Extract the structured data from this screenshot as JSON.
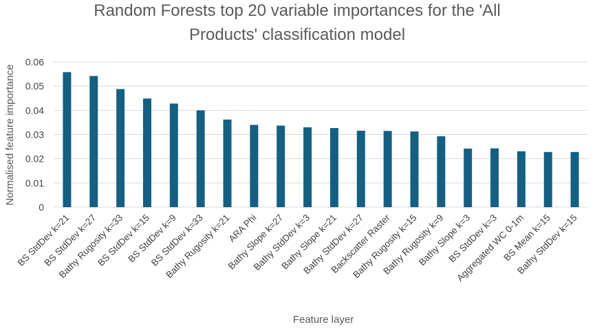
{
  "chart_data": {
    "type": "bar",
    "title_lines": [
      "Random Forests top 20 variable importances for the 'All",
      "Products' classification model"
    ],
    "xlabel": "Feature layer",
    "ylabel": "Normalised feature importance",
    "ylim": [
      0,
      0.06
    ],
    "yticks": [
      "0",
      "0.01",
      "0.02",
      "0.03",
      "0.04",
      "0.05",
      "0.06"
    ],
    "grid": true,
    "colors": {
      "bar": "#156082"
    },
    "categories": [
      "BS StdDev k=21",
      "BS StdDev k=27",
      "Bathy Rugosity k=33",
      "BS StdDev k=15",
      "BS StdDev k=9",
      "BS StdDev k=33",
      "Bathy Rugosity k=21",
      "ARA Phi",
      "Bathy Slope k=27",
      "Bathy StdDev k=3",
      "Bathy Slope k=21",
      "Bathy StdDev k=27",
      "Backscatter Raster",
      "Bathy Rugosity k=15",
      "Bathy Rugosity k=9",
      "Bathy Slope k=3",
      "BS StdDev k=3",
      "Aggregated WC 0-1m",
      "BS Mean k=15",
      "Bathy StdDev k=15"
    ],
    "values": [
      0.0558,
      0.0542,
      0.0488,
      0.0449,
      0.0428,
      0.04,
      0.0362,
      0.034,
      0.0337,
      0.033,
      0.0327,
      0.0316,
      0.0315,
      0.0313,
      0.0293,
      0.0242,
      0.0243,
      0.0231,
      0.0228,
      0.0228
    ]
  }
}
